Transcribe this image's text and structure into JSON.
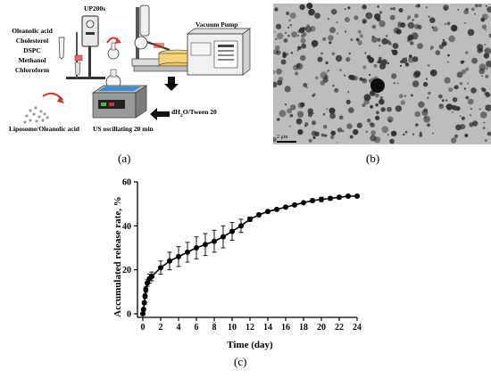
{
  "figure": {
    "panel_a": {
      "caption": "(a)",
      "device_label": "UP200s",
      "reagents": [
        "Oleanolic acid",
        "Cholesterol",
        "DSPC",
        "Methanol",
        "Chloroform"
      ],
      "pump_label": "Vacuum Pump",
      "water_label": "dH",
      "water_label_sub": "2",
      "water_label_rest": "O/Tween 20",
      "bath_label": "US oscillating 20 min",
      "product_label": "Liposome/Oleanolic acid",
      "colors": {
        "red_arrow": "#d9342b",
        "bath_water": "#3a8fd6",
        "dark": "#1a1a1a"
      }
    },
    "panel_b": {
      "caption": "(b)",
      "scale_bar_label": "2 μm"
    },
    "panel_c": {
      "caption": "(c)"
    }
  },
  "chart_data": {
    "type": "line",
    "title": "",
    "xlabel": "Time (day)",
    "ylabel": "Accumulated release rate, %",
    "xlim": [
      0,
      24
    ],
    "ylim": [
      0,
      60
    ],
    "x_ticks": [
      0,
      2,
      4,
      6,
      8,
      10,
      12,
      14,
      16,
      18,
      20,
      22,
      24
    ],
    "y_ticks": [
      0,
      20,
      40,
      60
    ],
    "grid": false,
    "legend": "none",
    "series": [
      {
        "x": [
          0,
          0.08,
          0.17,
          0.25,
          0.33,
          0.5,
          0.75,
          1,
          2,
          3,
          4,
          5,
          6,
          7,
          8,
          9,
          10,
          11,
          12,
          13,
          14,
          15,
          16,
          17,
          18,
          19,
          20,
          21,
          22,
          23,
          24
        ],
        "y": [
          0,
          2,
          5,
          8,
          11,
          14,
          16,
          17,
          21,
          24,
          26,
          28,
          30,
          31.5,
          33,
          35,
          37.5,
          40,
          43,
          45,
          46.5,
          47.5,
          48.5,
          49.5,
          50.5,
          51.5,
          52,
          52.5,
          53,
          53.5,
          53.5
        ],
        "err": [
          0,
          0.5,
          0.8,
          1,
          1.2,
          1.5,
          2,
          2,
          3,
          4,
          4.5,
          4.5,
          5,
          5,
          5,
          5,
          4,
          3,
          1,
          0.8,
          0.6,
          0.5,
          0.5,
          0.5,
          0.6,
          0.8,
          1,
          0.8,
          0.8,
          0.6,
          0.5
        ]
      }
    ]
  }
}
